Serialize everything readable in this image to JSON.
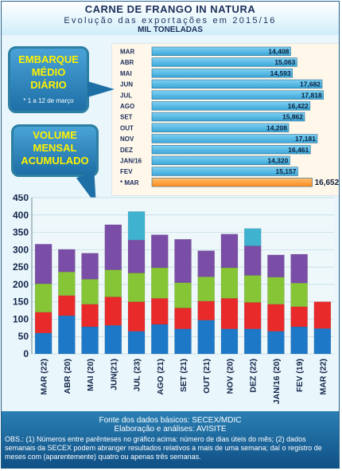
{
  "header": {
    "title": "CARNE DE FRANGO IN NATURA",
    "subtitle": "Evolução das exportações em 2015/16",
    "unit": "MIL TONELADAS"
  },
  "callouts": {
    "daily": {
      "line1": "EMBARQUE",
      "line2": "MÉDIO",
      "line3": "DIÁRIO",
      "note": "* 1 a 12 de março"
    },
    "monthly": {
      "line1": "VOLUME",
      "line2": "MENSAL",
      "line3": "ACUMULADO"
    }
  },
  "chart_data": [
    {
      "type": "bar",
      "orientation": "horizontal",
      "categories": [
        "MAR",
        "ABR",
        "MAI",
        "JUN",
        "JUL",
        "AGO",
        "SET",
        "OUT",
        "NOV",
        "DEZ",
        "JAN/16",
        "FEV",
        "* MAR"
      ],
      "values": [
        14.408,
        15.063,
        14.593,
        17.682,
        17.818,
        16.422,
        15.862,
        14.208,
        17.181,
        16.461,
        14.32,
        15.157,
        16.652
      ],
      "value_labels": [
        "14,408",
        "15,063",
        "14,593",
        "17,682",
        "17,818",
        "16,422",
        "15,862",
        "14,208",
        "17,181",
        "16,461",
        "14,320",
        "15,157",
        "16,652"
      ],
      "xlim": [
        0,
        19
      ],
      "colors": {
        "bar": "#3aa7d8",
        "highlight": "#ff8a1a"
      }
    },
    {
      "type": "bar",
      "stacked": true,
      "categories": [
        "MAR (22)",
        "ABR (20)",
        "MAI (20)",
        "JUN(21)",
        "JUL (23)",
        "AGO (21)",
        "SET (21)",
        "OUT (21)",
        "NOV (20)",
        "DEZ (22)",
        "JAN/16 (20)",
        "FEV (19)",
        "MAR (22)"
      ],
      "series": [
        {
          "values": [
            60,
            110,
            78,
            82,
            65,
            85,
            72,
            97,
            72,
            72,
            65,
            78,
            73
          ],
          "color": "#1e78c8"
        },
        {
          "values": [
            60,
            58,
            65,
            82,
            85,
            75,
            60,
            55,
            88,
            76,
            78,
            58,
            77
          ],
          "color": "#e82a2a"
        },
        {
          "values": [
            82,
            68,
            72,
            78,
            83,
            88,
            73,
            70,
            88,
            78,
            78,
            68,
            0
          ],
          "color": "#86c536"
        },
        {
          "values": [
            114,
            65,
            75,
            130,
            95,
            95,
            125,
            75,
            97,
            85,
            64,
            83,
            0
          ],
          "color": "#7a4ea6"
        },
        {
          "values": [
            0,
            0,
            0,
            0,
            82,
            0,
            0,
            0,
            0,
            50,
            0,
            0,
            0
          ],
          "color": "#3fb2d0"
        }
      ],
      "ylim": [
        0,
        450
      ],
      "yticks": [
        0,
        50,
        100,
        150,
        200,
        250,
        300,
        350,
        400,
        450
      ],
      "grid": true
    }
  ],
  "footer": {
    "line1": "Fonte dos dados básicos: SECEX/MDIC",
    "line2": "Elaboração e análises: AVISITE",
    "line3": "OBS.: (1) Números entre parênteses no gráfico acima: número de dias úteis do mês; (2) dados semanais da SECEX podem abranger resultados relativos a mais de uma semana; daí o registro de meses com (aparentemente) quatro ou apenas três semanas."
  }
}
